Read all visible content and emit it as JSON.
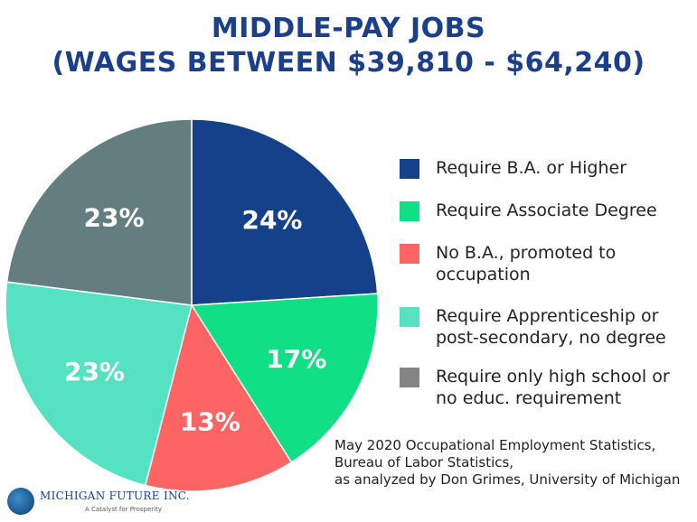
{
  "header": {
    "title_line1": "MIDDLE-PAY JOBS",
    "title_line2": "(WAGES BETWEEN $39,810 - $64,240)"
  },
  "chart_data": {
    "type": "pie",
    "title": "MIDDLE-PAY JOBS (WAGES BETWEEN $39,810 - $64,240)",
    "slices": [
      {
        "label": "Require B.A. or Higher",
        "value": 24,
        "value_label": "24%",
        "color": "#15408a"
      },
      {
        "label": "Require Associate Degree",
        "value": 17,
        "value_label": "17%",
        "color": "#10df86"
      },
      {
        "label": "No B.A., promoted to occupation",
        "value": 13,
        "value_label": "13%",
        "color": "#fd6565"
      },
      {
        "label": "Require Apprenticeship or post-secondary, no degree",
        "value": 23,
        "value_label": "23%",
        "color": "#55e2c2"
      },
      {
        "label": "Require only high school or no educ. requirement",
        "value": 23,
        "value_label": "23%",
        "color": "#637d80"
      }
    ],
    "legend_position": "right"
  },
  "legend": {
    "items": [
      {
        "lines": [
          "Require B.A. or Higher"
        ],
        "color": "#15408a"
      },
      {
        "lines": [
          "Require Associate Degree"
        ],
        "color": "#10df86"
      },
      {
        "lines": [
          "No B.A., promoted to",
          "occupation"
        ],
        "color": "#fd6565"
      },
      {
        "lines": [
          "Require Apprenticeship or",
          "post-secondary, no degree"
        ],
        "color": "#55e2c2"
      },
      {
        "lines": [
          "Require only high school or",
          "no educ. requirement"
        ],
        "color": "#848484"
      }
    ]
  },
  "source": {
    "line1": "May 2020 Occupational Employment Statistics,",
    "line2": "Bureau of Labor Statistics,",
    "line3": "as analyzed by Don Grimes, University of Michigan"
  },
  "logo": {
    "name": "MICHIGAN FUTURE INC.",
    "tagline": "A Catalyst for Prosperity"
  }
}
